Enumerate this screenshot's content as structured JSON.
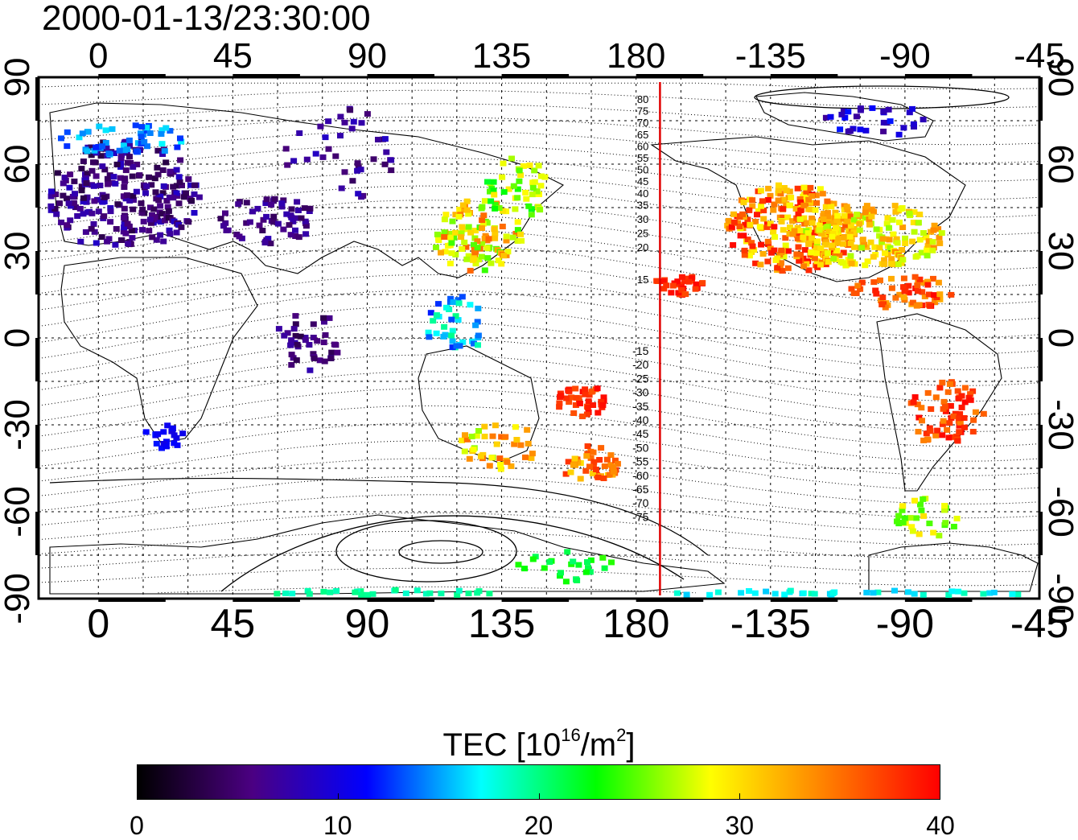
{
  "title": "2000-01-13/23:30:00",
  "map": {
    "x_axis_top_labels": [
      "0",
      "45",
      "90",
      "135",
      "180",
      "-135",
      "-90",
      "-45"
    ],
    "x_axis_bottom_labels": [
      "0",
      "45",
      "90",
      "135",
      "180",
      "-135",
      "-90",
      "-45"
    ],
    "y_axis_left_labels": [
      "90",
      "60",
      "30",
      "0",
      "-30",
      "-60",
      "-90"
    ],
    "y_axis_right_labels": [
      "90",
      "60",
      "30",
      "0",
      "-30",
      "-60",
      "-90"
    ],
    "longitude_range": [
      -20,
      315
    ],
    "latitude_range": [
      -90,
      90
    ],
    "terminator_longitude": 188,
    "terminator_color": "#e00000",
    "magnetic_latitude_labels_north": [
      "80",
      "75",
      "70",
      "65",
      "60",
      "55",
      "50",
      "45",
      "40",
      "35",
      "30",
      "25",
      "20",
      "15"
    ],
    "magnetic_latitude_labels_south": [
      "-15",
      "-20",
      "-25",
      "-30",
      "-35",
      "-40",
      "-45",
      "-50",
      "-55",
      "-60",
      "-65",
      "-70",
      "-75"
    ]
  },
  "colorbar": {
    "title_text": "TEC  [10",
    "title_exp1": "16",
    "title_unit": "/m",
    "title_exp2": "2",
    "title_close": "]",
    "min": 0,
    "max": 40,
    "tick_labels": [
      "0",
      "10",
      "20",
      "30",
      "40"
    ],
    "colors": [
      "#000000",
      "#4b0082",
      "#0000ff",
      "#00ffff",
      "#00ff00",
      "#ffff00",
      "#ff8000",
      "#ff0000"
    ]
  }
}
